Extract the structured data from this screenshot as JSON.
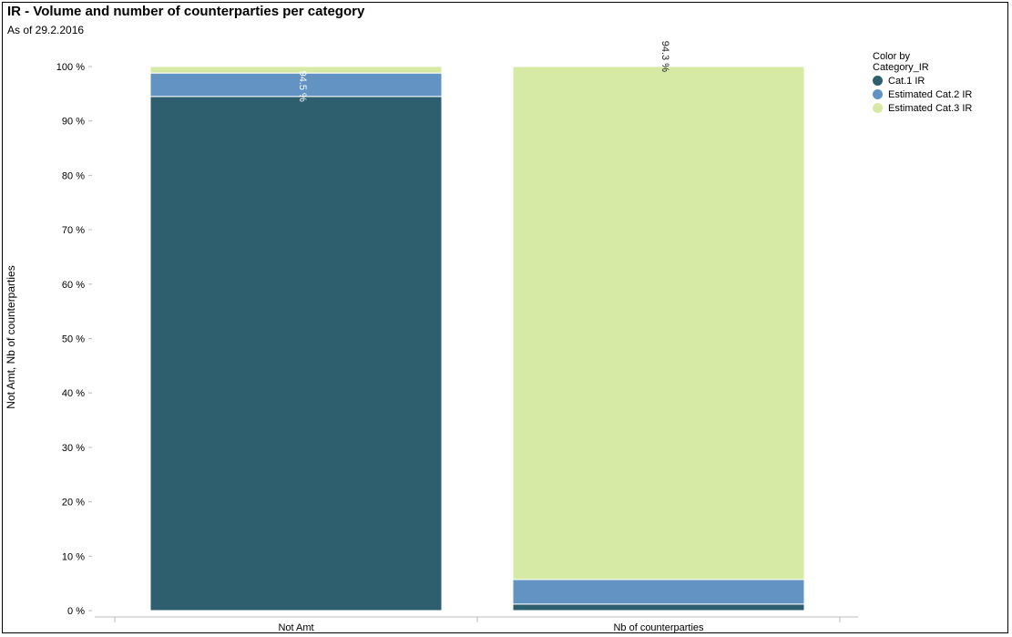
{
  "header": {
    "title": "IR - Volume and number of counterparties per category",
    "subtitle": "As of 29.2.2016"
  },
  "legend": {
    "title_line1": "Color by",
    "title_line2": "Category_IR",
    "position": "top-right"
  },
  "colors": {
    "cat1": "#2e5f6e",
    "cat2": "#6393c2",
    "cat3": "#d6eaa6"
  },
  "chart_data": {
    "type": "bar",
    "stacked": true,
    "normalized": true,
    "title": "IR - Volume and number of counterparties per category",
    "subtitle": "As of 29.2.2016",
    "xlabel": "",
    "ylabel": "Not Amt, Nb of counterparties",
    "ylim": [
      0,
      100
    ],
    "y_ticks": [
      "0 %",
      "10 %",
      "20 %",
      "30 %",
      "40 %",
      "50 %",
      "60 %",
      "70 %",
      "80 %",
      "90 %",
      "100 %"
    ],
    "categories": [
      "Not Amt",
      "Nb of counterparties"
    ],
    "series": [
      {
        "name": "Cat.1 IR",
        "color": "#2e5f6e",
        "values": [
          94.5,
          1.2
        ]
      },
      {
        "name": "Estimated Cat.2 IR",
        "color": "#6393c2",
        "values": [
          4.3,
          4.5
        ]
      },
      {
        "name": "Estimated Cat.3 IR",
        "color": "#d6eaa6",
        "values": [
          1.2,
          94.3
        ]
      }
    ],
    "data_labels": [
      {
        "category": "Not Amt",
        "series": "Cat.1 IR",
        "text": "94.5 %"
      },
      {
        "category": "Nb of counterparties",
        "series": "Estimated Cat.3 IR",
        "text": "94.3 %"
      }
    ],
    "grid": false,
    "legend_position": "top-right"
  }
}
